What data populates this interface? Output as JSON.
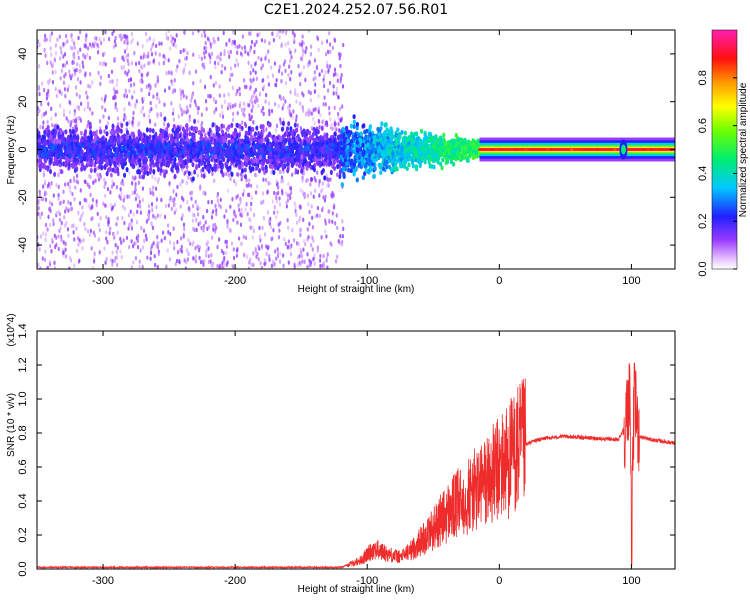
{
  "figure": {
    "title": "C2E1.2024.252.07.56.R01"
  },
  "chart_data": [
    {
      "type": "heatmap",
      "xlabel": "Height of straight line (km)",
      "ylabel": "Frequency (Hz)",
      "xlim": [
        -350,
        133
      ],
      "ylim": [
        -50,
        50
      ],
      "x_ticks": [
        -300,
        -200,
        -100,
        0,
        100
      ],
      "y_ticks": [
        -40,
        -20,
        0,
        20,
        40
      ],
      "colorbar": {
        "label": "Normalized spectral amplitude",
        "range": [
          0,
          1
        ],
        "ticks": [
          "0.0",
          "0.2",
          "0.4",
          "0.6",
          "0.8"
        ],
        "colormap": "rainbow (white-violet-blue-cyan-green-yellow-red-magenta)"
      },
      "regions": [
        {
          "x_range": [
            -350,
            -120
          ],
          "description": "broadband noise, amplitude ~0.1-0.3, band spread -50..50 Hz"
        },
        {
          "x_range": [
            -120,
            -15
          ],
          "description": "narrowing band around 0 Hz, amplitude rising to ~0.5"
        },
        {
          "x_range": [
            -15,
            133
          ],
          "description": "narrow line at ~0 Hz, amplitude ~0.9-1.0"
        }
      ],
      "grid": false
    },
    {
      "type": "line",
      "xlabel": "Height of straight line (km)",
      "ylabel": "SNR (10 * v/v)",
      "y_multiplier": "(x10^4)",
      "xlim": [
        -350,
        133
      ],
      "ylim": [
        0,
        1.4
      ],
      "x_ticks": [
        -300,
        -200,
        -100,
        0,
        100
      ],
      "y_ticks": [
        "0.0",
        "0.2",
        "0.4",
        "0.6",
        "0.8",
        "1.0",
        "1.2",
        "1.4"
      ],
      "series": [
        {
          "color": "#ee2c2c",
          "x": [
            -350,
            -300,
            -200,
            -120,
            -105,
            -95,
            -85,
            -75,
            -65,
            -55,
            -45,
            -35,
            -25,
            -15,
            -5,
            5,
            15,
            25,
            35,
            50,
            70,
            90,
            96,
            99,
            100,
            102,
            106,
            115,
            125,
            133
          ],
          "y": [
            0.01,
            0.01,
            0.01,
            0.01,
            0.05,
            0.12,
            0.09,
            0.07,
            0.12,
            0.2,
            0.28,
            0.36,
            0.42,
            0.48,
            0.55,
            0.63,
            0.71,
            0.75,
            0.77,
            0.78,
            0.77,
            0.76,
            0.85,
            1.1,
            0.1,
            1.0,
            0.78,
            0.76,
            0.75,
            0.74
          ]
        }
      ],
      "grid": false
    }
  ]
}
